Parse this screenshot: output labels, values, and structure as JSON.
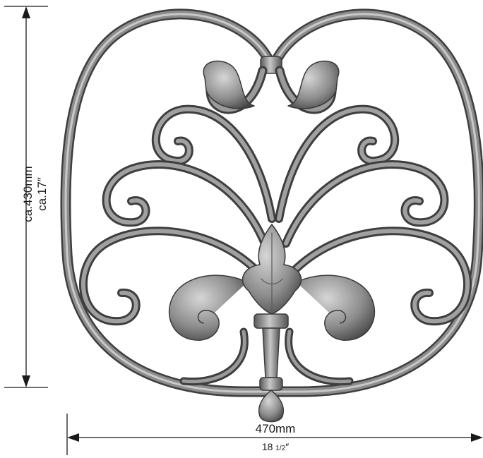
{
  "dimensions": {
    "height_mm": "ca.430mm",
    "height_in": "ca.17″",
    "width_mm": "470mm",
    "width_in_whole": "18",
    "width_in_fraction": "1/2",
    "width_in_mark": "″"
  },
  "colors": {
    "iron_dark": "#3a3a3a",
    "iron_mid": "#7d7d7d",
    "iron_light": "#b8b8b8",
    "dimension_lines": "#1a1a1a"
  },
  "icon_names": [
    "wrought-iron-panel-icon",
    "fleur-de-lis-icon",
    "acanthus-leaf-icon",
    "scroll-icon"
  ]
}
